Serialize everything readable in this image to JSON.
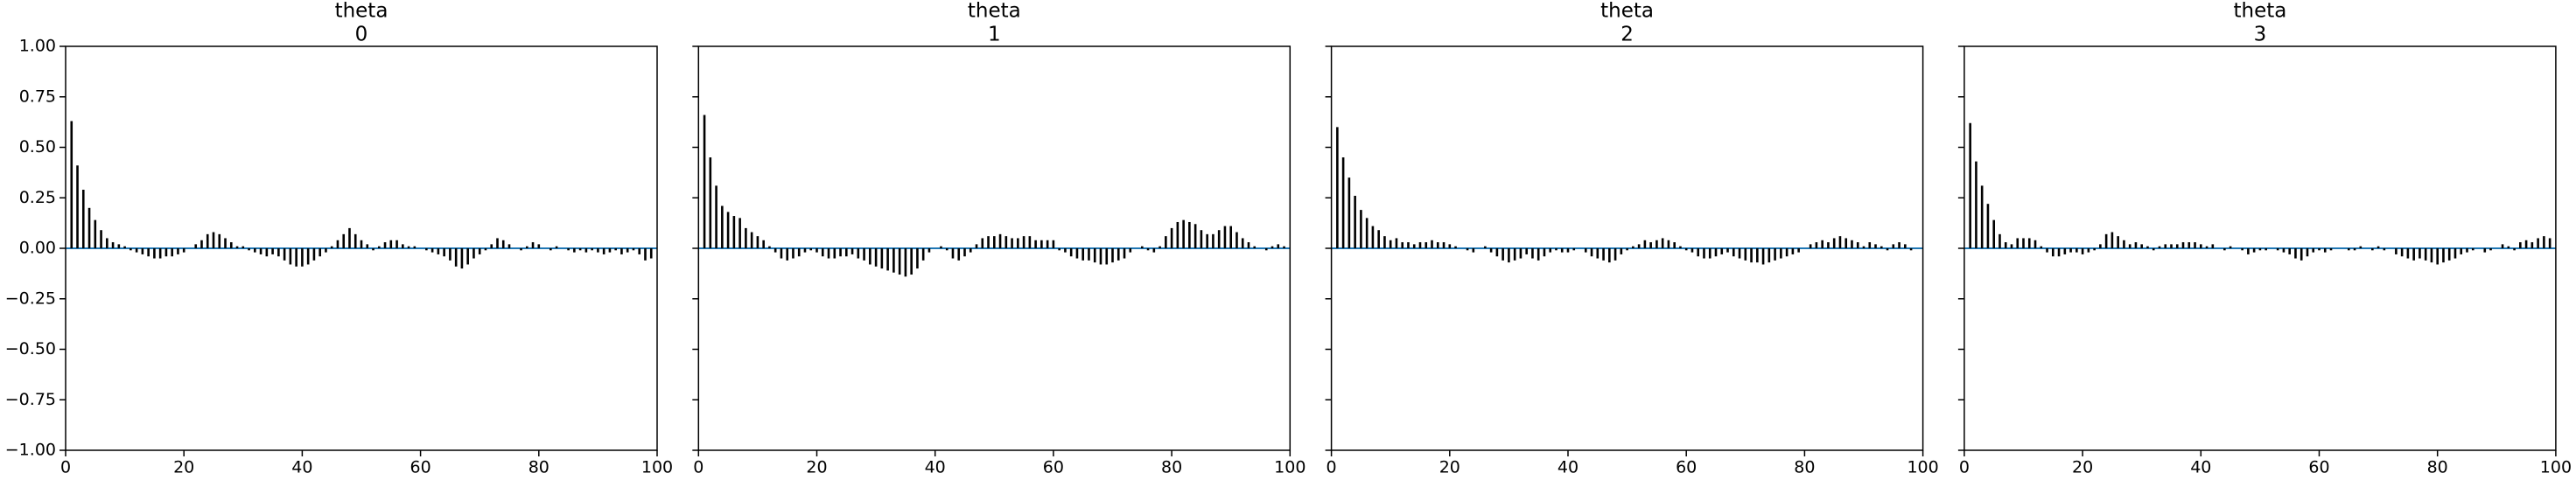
{
  "chart_data": [
    {
      "type": "autocorr",
      "title": "theta",
      "subtitle": "0",
      "color": "#000000",
      "zero_line_color": "#1f77b4",
      "x": [
        1,
        2,
        3,
        4,
        5,
        6,
        7,
        8,
        9,
        10,
        11,
        12,
        13,
        14,
        15,
        16,
        17,
        18,
        19,
        20,
        21,
        22,
        23,
        24,
        25,
        26,
        27,
        28,
        29,
        30,
        31,
        32,
        33,
        34,
        35,
        36,
        37,
        38,
        39,
        40,
        41,
        42,
        43,
        44,
        45,
        46,
        47,
        48,
        49,
        50,
        51,
        52,
        53,
        54,
        55,
        56,
        57,
        58,
        59,
        60,
        61,
        62,
        63,
        64,
        65,
        66,
        67,
        68,
        69,
        70,
        71,
        72,
        73,
        74,
        75,
        76,
        77,
        78,
        79,
        80,
        81,
        82,
        83,
        84,
        85,
        86,
        87,
        88,
        89,
        90,
        91,
        92,
        93,
        94,
        95,
        96,
        97,
        98,
        99
      ],
      "values": [
        0.63,
        0.41,
        0.29,
        0.2,
        0.14,
        0.09,
        0.05,
        0.03,
        0.02,
        0.01,
        -0.01,
        -0.02,
        -0.03,
        -0.04,
        -0.05,
        -0.05,
        -0.04,
        -0.04,
        -0.03,
        -0.02,
        0.0,
        0.02,
        0.04,
        0.07,
        0.08,
        0.07,
        0.05,
        0.03,
        0.01,
        0.01,
        -0.01,
        -0.02,
        -0.03,
        -0.04,
        -0.03,
        -0.04,
        -0.06,
        -0.08,
        -0.09,
        -0.09,
        -0.08,
        -0.06,
        -0.04,
        -0.02,
        0.01,
        0.04,
        0.07,
        0.1,
        0.07,
        0.04,
        0.02,
        -0.01,
        0.01,
        0.03,
        0.04,
        0.04,
        0.02,
        0.01,
        0.01,
        0.0,
        -0.01,
        -0.02,
        -0.03,
        -0.04,
        -0.06,
        -0.09,
        -0.1,
        -0.08,
        -0.05,
        -0.03,
        -0.01,
        0.02,
        0.05,
        0.04,
        0.02,
        0.0,
        -0.01,
        0.01,
        0.03,
        0.02,
        0.0,
        -0.01,
        0.01,
        0.0,
        -0.01,
        -0.02,
        -0.01,
        -0.02,
        -0.01,
        -0.02,
        -0.03,
        -0.02,
        -0.01,
        -0.03,
        -0.02,
        -0.01,
        -0.03,
        -0.06,
        -0.05
      ],
      "xlim": [
        0,
        100
      ],
      "xticks": [
        0,
        20,
        40,
        60,
        80,
        100
      ],
      "ylim": [
        -1,
        1
      ],
      "yticks": [
        {
          "value": -1,
          "label": "−1.00"
        },
        {
          "value": -0.75,
          "label": "−0.75"
        },
        {
          "value": -0.5,
          "label": "−0.50"
        },
        {
          "value": -0.25,
          "label": "−0.25"
        },
        {
          "value": 0,
          "label": "0.00"
        },
        {
          "value": 0.25,
          "label": "0.25"
        },
        {
          "value": 0.5,
          "label": "0.50"
        },
        {
          "value": 0.75,
          "label": "0.75"
        },
        {
          "value": 1,
          "label": "1.00"
        }
      ]
    },
    {
      "type": "autocorr",
      "title": "theta",
      "subtitle": "1",
      "color": "#000000",
      "zero_line_color": "#1f77b4",
      "x": [
        1,
        2,
        3,
        4,
        5,
        6,
        7,
        8,
        9,
        10,
        11,
        12,
        13,
        14,
        15,
        16,
        17,
        18,
        19,
        20,
        21,
        22,
        23,
        24,
        25,
        26,
        27,
        28,
        29,
        30,
        31,
        32,
        33,
        34,
        35,
        36,
        37,
        38,
        39,
        40,
        41,
        42,
        43,
        44,
        45,
        46,
        47,
        48,
        49,
        50,
        51,
        52,
        53,
        54,
        55,
        56,
        57,
        58,
        59,
        60,
        61,
        62,
        63,
        64,
        65,
        66,
        67,
        68,
        69,
        70,
        71,
        72,
        73,
        74,
        75,
        76,
        77,
        78,
        79,
        80,
        81,
        82,
        83,
        84,
        85,
        86,
        87,
        88,
        89,
        90,
        91,
        92,
        93,
        94,
        95,
        96,
        97,
        98,
        99
      ],
      "values": [
        0.66,
        0.45,
        0.31,
        0.21,
        0.18,
        0.16,
        0.15,
        0.1,
        0.08,
        0.06,
        0.04,
        0.01,
        -0.02,
        -0.05,
        -0.06,
        -0.05,
        -0.04,
        -0.02,
        -0.01,
        -0.02,
        -0.04,
        -0.05,
        -0.05,
        -0.04,
        -0.04,
        -0.03,
        -0.05,
        -0.06,
        -0.08,
        -0.09,
        -0.1,
        -0.11,
        -0.12,
        -0.13,
        -0.14,
        -0.13,
        -0.1,
        -0.06,
        -0.02,
        0.0,
        0.01,
        -0.01,
        -0.05,
        -0.06,
        -0.04,
        -0.02,
        0.02,
        0.05,
        0.06,
        0.06,
        0.07,
        0.06,
        0.05,
        0.05,
        0.06,
        0.06,
        0.04,
        0.04,
        0.04,
        0.04,
        -0.01,
        -0.02,
        -0.04,
        -0.05,
        -0.06,
        -0.06,
        -0.07,
        -0.08,
        -0.08,
        -0.07,
        -0.06,
        -0.05,
        -0.02,
        0.0,
        0.01,
        -0.01,
        -0.02,
        0.01,
        0.06,
        0.1,
        0.13,
        0.14,
        0.13,
        0.12,
        0.09,
        0.07,
        0.07,
        0.09,
        0.11,
        0.11,
        0.08,
        0.05,
        0.03,
        0.01,
        0.0,
        -0.01,
        0.01,
        0.02,
        0.01
      ],
      "xlim": [
        0,
        100
      ],
      "xticks": [
        0,
        20,
        40,
        60,
        80,
        100
      ],
      "ylim": [
        -1,
        1
      ]
    },
    {
      "type": "autocorr",
      "title": "theta",
      "subtitle": "2",
      "color": "#000000",
      "zero_line_color": "#1f77b4",
      "x": [
        1,
        2,
        3,
        4,
        5,
        6,
        7,
        8,
        9,
        10,
        11,
        12,
        13,
        14,
        15,
        16,
        17,
        18,
        19,
        20,
        21,
        22,
        23,
        24,
        25,
        26,
        27,
        28,
        29,
        30,
        31,
        32,
        33,
        34,
        35,
        36,
        37,
        38,
        39,
        40,
        41,
        42,
        43,
        44,
        45,
        46,
        47,
        48,
        49,
        50,
        51,
        52,
        53,
        54,
        55,
        56,
        57,
        58,
        59,
        60,
        61,
        62,
        63,
        64,
        65,
        66,
        67,
        68,
        69,
        70,
        71,
        72,
        73,
        74,
        75,
        76,
        77,
        78,
        79,
        80,
        81,
        82,
        83,
        84,
        85,
        86,
        87,
        88,
        89,
        90,
        91,
        92,
        93,
        94,
        95,
        96,
        97,
        98,
        99
      ],
      "values": [
        0.6,
        0.45,
        0.35,
        0.26,
        0.19,
        0.15,
        0.11,
        0.09,
        0.06,
        0.04,
        0.05,
        0.03,
        0.03,
        0.02,
        0.03,
        0.03,
        0.04,
        0.03,
        0.03,
        0.02,
        0.01,
        0.0,
        -0.01,
        -0.02,
        0.0,
        0.01,
        -0.02,
        -0.04,
        -0.06,
        -0.07,
        -0.06,
        -0.05,
        -0.03,
        -0.05,
        -0.06,
        -0.04,
        -0.02,
        -0.01,
        -0.02,
        -0.02,
        -0.01,
        0.0,
        -0.02,
        -0.04,
        -0.05,
        -0.06,
        -0.07,
        -0.06,
        -0.03,
        -0.01,
        0.01,
        0.02,
        0.04,
        0.03,
        0.04,
        0.05,
        0.04,
        0.03,
        0.01,
        -0.01,
        -0.02,
        -0.04,
        -0.05,
        -0.05,
        -0.04,
        -0.03,
        -0.02,
        -0.04,
        -0.05,
        -0.06,
        -0.07,
        -0.07,
        -0.08,
        -0.07,
        -0.06,
        -0.05,
        -0.04,
        -0.03,
        -0.02,
        0.0,
        0.02,
        0.03,
        0.04,
        0.03,
        0.05,
        0.06,
        0.05,
        0.04,
        0.03,
        0.01,
        0.03,
        0.02,
        0.01,
        -0.01,
        0.02,
        0.03,
        0.02,
        -0.01,
        0.0
      ],
      "xlim": [
        0,
        100
      ],
      "xticks": [
        0,
        20,
        40,
        60,
        80,
        100
      ],
      "ylim": [
        -1,
        1
      ]
    },
    {
      "type": "autocorr",
      "title": "theta",
      "subtitle": "3",
      "color": "#000000",
      "zero_line_color": "#1f77b4",
      "x": [
        1,
        2,
        3,
        4,
        5,
        6,
        7,
        8,
        9,
        10,
        11,
        12,
        13,
        14,
        15,
        16,
        17,
        18,
        19,
        20,
        21,
        22,
        23,
        24,
        25,
        26,
        27,
        28,
        29,
        30,
        31,
        32,
        33,
        34,
        35,
        36,
        37,
        38,
        39,
        40,
        41,
        42,
        43,
        44,
        45,
        46,
        47,
        48,
        49,
        50,
        51,
        52,
        53,
        54,
        55,
        56,
        57,
        58,
        59,
        60,
        61,
        62,
        63,
        64,
        65,
        66,
        67,
        68,
        69,
        70,
        71,
        72,
        73,
        74,
        75,
        76,
        77,
        78,
        79,
        80,
        81,
        82,
        83,
        84,
        85,
        86,
        87,
        88,
        89,
        90,
        91,
        92,
        93,
        94,
        95,
        96,
        97,
        98,
        99
      ],
      "values": [
        0.62,
        0.43,
        0.31,
        0.22,
        0.14,
        0.07,
        0.03,
        0.02,
        0.05,
        0.05,
        0.05,
        0.04,
        0.01,
        -0.02,
        -0.04,
        -0.04,
        -0.03,
        -0.02,
        -0.02,
        -0.03,
        -0.02,
        -0.01,
        0.02,
        0.07,
        0.08,
        0.06,
        0.04,
        0.02,
        0.03,
        0.02,
        0.01,
        -0.01,
        0.01,
        0.02,
        0.02,
        0.02,
        0.03,
        0.03,
        0.03,
        0.02,
        0.01,
        0.02,
        0.0,
        -0.01,
        0.01,
        0.0,
        -0.01,
        -0.03,
        -0.02,
        -0.01,
        -0.01,
        0.0,
        -0.01,
        -0.02,
        -0.03,
        -0.05,
        -0.06,
        -0.04,
        -0.02,
        -0.01,
        -0.02,
        -0.01,
        0.0,
        0.0,
        -0.01,
        -0.01,
        0.01,
        0.0,
        -0.01,
        0.01,
        -0.01,
        0.0,
        -0.03,
        -0.04,
        -0.05,
        -0.06,
        -0.05,
        -0.06,
        -0.07,
        -0.08,
        -0.07,
        -0.06,
        -0.05,
        -0.03,
        -0.02,
        -0.01,
        0.0,
        -0.02,
        -0.01,
        0.0,
        0.02,
        0.01,
        -0.01,
        0.03,
        0.04,
        0.03,
        0.05,
        0.06,
        0.05
      ],
      "xlim": [
        0,
        100
      ],
      "xticks": [
        0,
        20,
        40,
        60,
        80,
        100
      ],
      "ylim": [
        -1,
        1
      ]
    }
  ]
}
